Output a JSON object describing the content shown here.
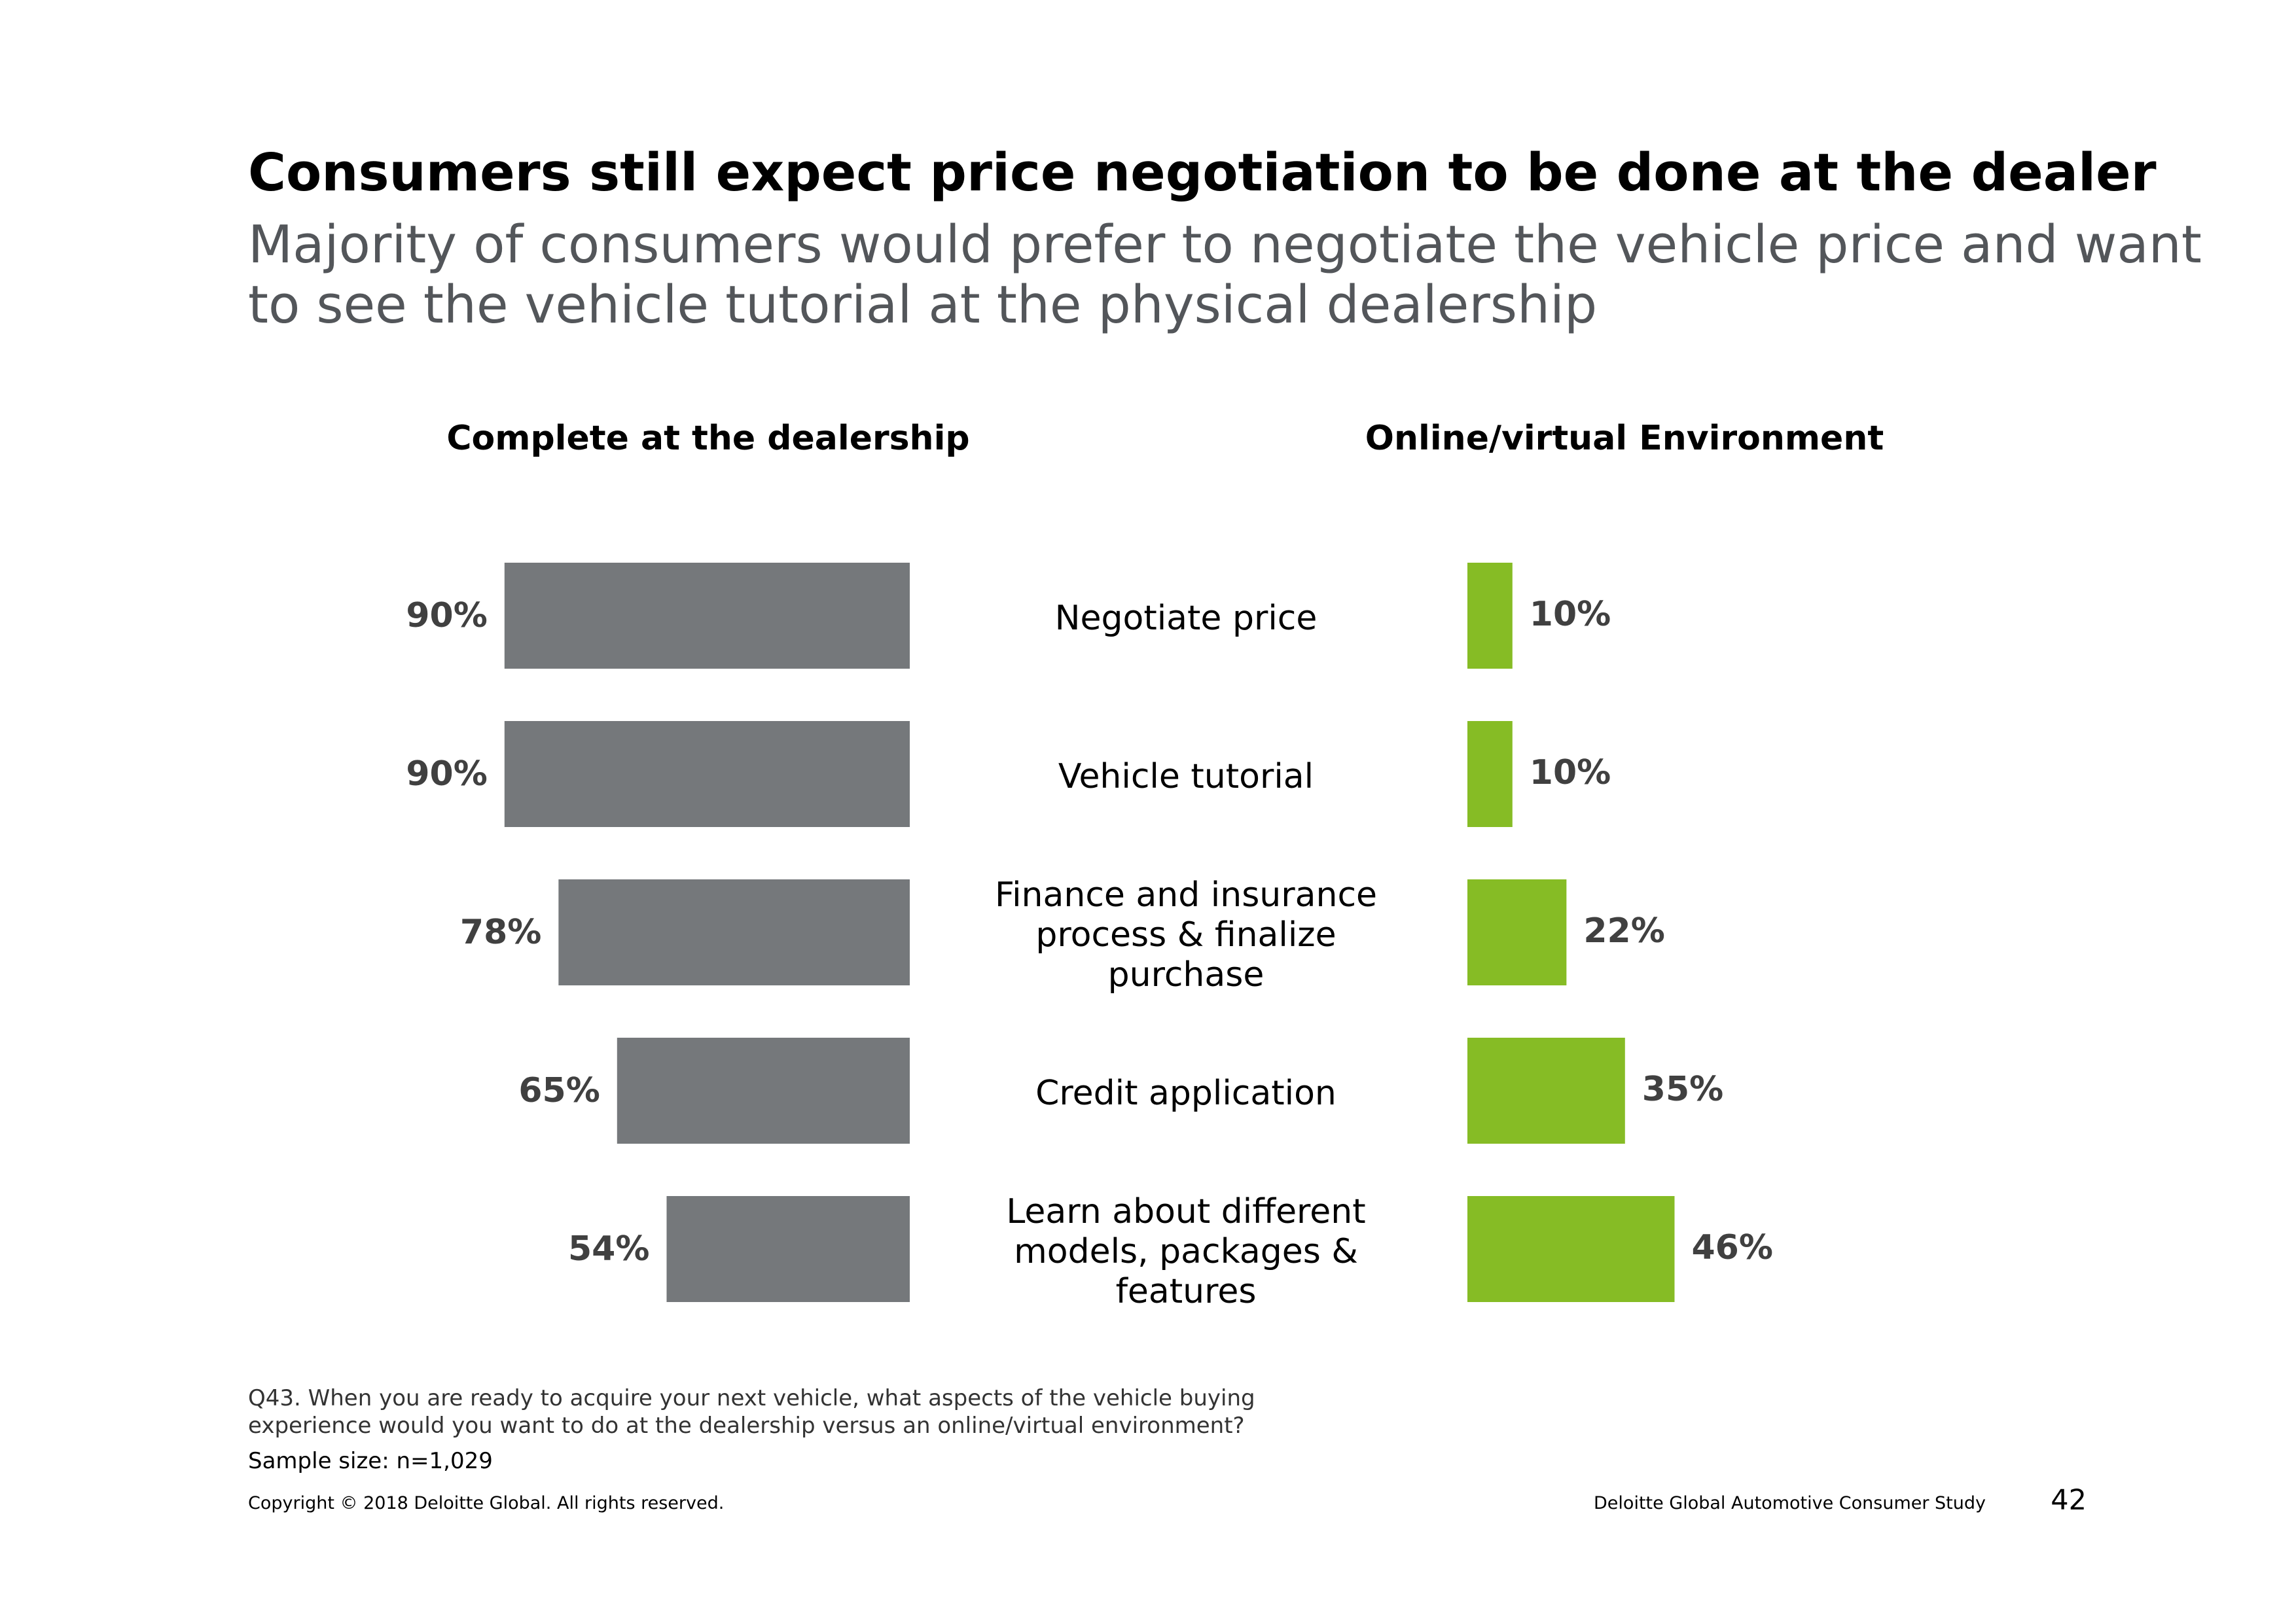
{
  "header": {
    "title": "Consumers still expect price negotiation to be done at the dealer",
    "subtitle": "Majority of consumers would prefer to negotiate the vehicle price and want to see the vehicle tutorial at the physical dealership"
  },
  "colors": {
    "dealership": "#75787b",
    "online": "#86bc25",
    "value_text": "#404040"
  },
  "chart_data": {
    "type": "bar",
    "orientation": "horizontal-butterfly",
    "categories": [
      [
        "Negotiate price"
      ],
      [
        "Vehicle tutorial"
      ],
      [
        "Finance and insurance",
        "process & finalize",
        "purchase"
      ],
      [
        "Credit application"
      ],
      [
        "Learn about different",
        "models, packages &",
        "features"
      ]
    ],
    "series": [
      {
        "name": "Complete at the dealership",
        "values": [
          90,
          90,
          78,
          65,
          54
        ],
        "labels": [
          "90%",
          "90%",
          "78%",
          "65%",
          "54%"
        ]
      },
      {
        "name": "Online/virtual Environment",
        "values": [
          10,
          10,
          22,
          35,
          46
        ],
        "labels": [
          "10%",
          "10%",
          "22%",
          "35%",
          "46%"
        ]
      }
    ],
    "unit": "%",
    "xlim": [
      0,
      100
    ]
  },
  "footer": {
    "question": "Q43. When you are ready to acquire your next vehicle, what aspects of the vehicle buying experience would you want to do at the dealership versus an online/virtual environment?",
    "sample": "Sample size: n=1,029",
    "copyright": "Copyright © 2018 Deloitte Global. All rights reserved.",
    "study": "Deloitte Global Automotive Consumer Study",
    "page_number": "42"
  }
}
